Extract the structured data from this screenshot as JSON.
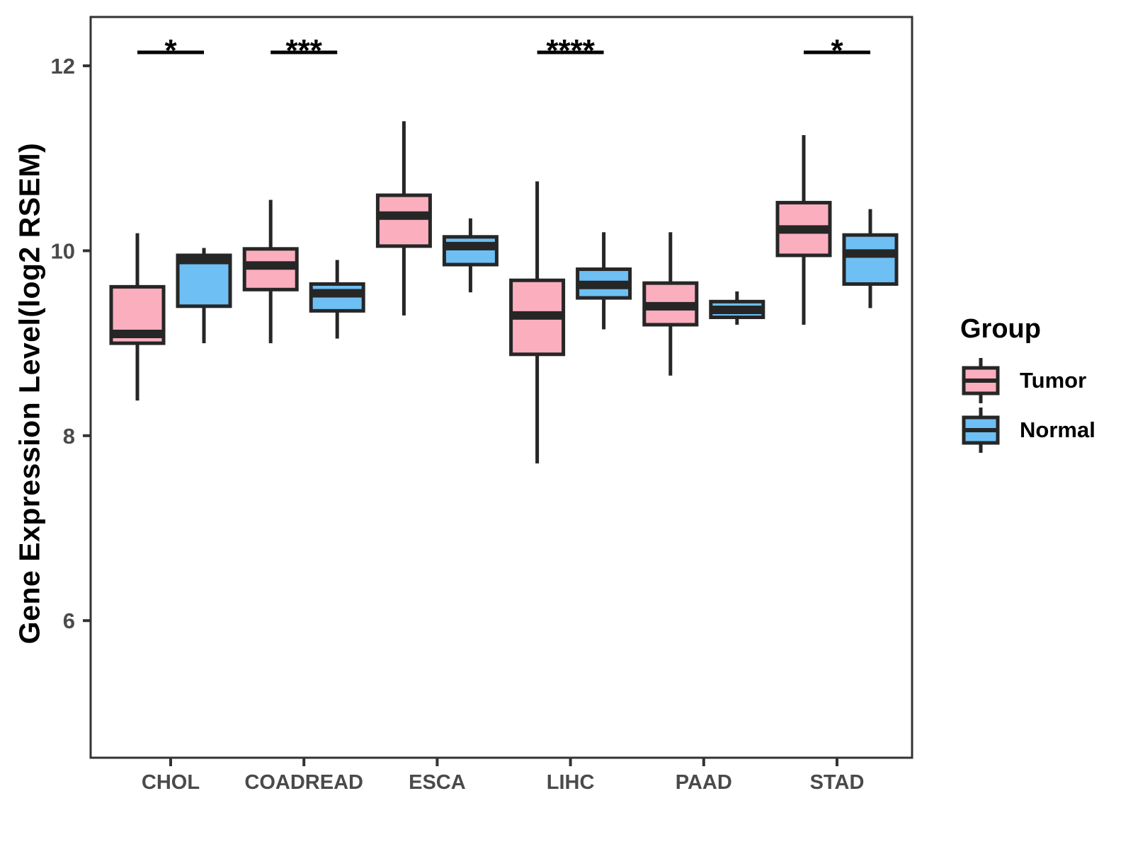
{
  "legend": {
    "title": "Group",
    "items": [
      {
        "label": "Tumor",
        "color": "#FAAEBE"
      },
      {
        "label": "Normal",
        "color": "#6EBFF3"
      }
    ]
  },
  "chart_data": {
    "type": "boxplot",
    "title": "",
    "xlabel": "",
    "ylabel": "Gene Expression Level(log2 RSEM)",
    "categories": [
      "CHOL",
      "COADREAD",
      "ESCA",
      "LIHC",
      "PAAD",
      "STAD"
    ],
    "y_ticks": [
      12,
      10,
      8,
      6
    ],
    "ylim": [
      4.5,
      12.55
    ],
    "grid": false,
    "legend_position": "right",
    "colors": {
      "tumor_fill": "#FAAEBE",
      "normal_fill": "#6EBFF3",
      "box_stroke": "#262626",
      "axis_text": "#4a4a4a",
      "panel_border": "#333333",
      "significance": "#000000"
    },
    "series": [
      {
        "name": "Tumor",
        "color": "#FAAEBE",
        "boxes": [
          {
            "category": "CHOL",
            "min": 8.38,
            "q1": 9.0,
            "median": 9.1,
            "q3": 9.61,
            "max": 10.19
          },
          {
            "category": "COADREAD",
            "min": 9.0,
            "q1": 9.58,
            "median": 9.84,
            "q3": 10.02,
            "max": 10.55
          },
          {
            "category": "ESCA",
            "min": 9.3,
            "q1": 10.05,
            "median": 10.38,
            "q3": 10.6,
            "max": 11.4
          },
          {
            "category": "LIHC",
            "min": 7.7,
            "q1": 8.88,
            "median": 9.3,
            "q3": 9.68,
            "max": 10.75
          },
          {
            "category": "PAAD",
            "min": 8.65,
            "q1": 9.2,
            "median": 9.4,
            "q3": 9.65,
            "max": 10.2
          },
          {
            "category": "STAD",
            "min": 9.2,
            "q1": 9.95,
            "median": 10.23,
            "q3": 10.52,
            "max": 11.25
          }
        ]
      },
      {
        "name": "Normal",
        "color": "#6EBFF3",
        "boxes": [
          {
            "category": "CHOL",
            "min": 9.0,
            "q1": 9.4,
            "median": 9.9,
            "q3": 9.95,
            "max": 10.03
          },
          {
            "category": "COADREAD",
            "min": 9.05,
            "q1": 9.35,
            "median": 9.54,
            "q3": 9.64,
            "max": 9.9
          },
          {
            "category": "ESCA",
            "min": 9.55,
            "q1": 9.85,
            "median": 10.05,
            "q3": 10.15,
            "max": 10.35
          },
          {
            "category": "LIHC",
            "min": 9.15,
            "q1": 9.49,
            "median": 9.63,
            "q3": 9.8,
            "max": 10.2
          },
          {
            "category": "PAAD",
            "min": 9.2,
            "q1": 9.28,
            "median": 9.36,
            "q3": 9.45,
            "max": 9.56
          },
          {
            "category": "STAD",
            "min": 9.38,
            "q1": 9.64,
            "median": 9.97,
            "q3": 10.17,
            "max": 10.45
          }
        ]
      }
    ],
    "significance": [
      {
        "category": "CHOL",
        "label": "*"
      },
      {
        "category": "COADREAD",
        "label": "***"
      },
      {
        "category": "LIHC",
        "label": "****"
      },
      {
        "category": "STAD",
        "label": "*"
      }
    ]
  }
}
